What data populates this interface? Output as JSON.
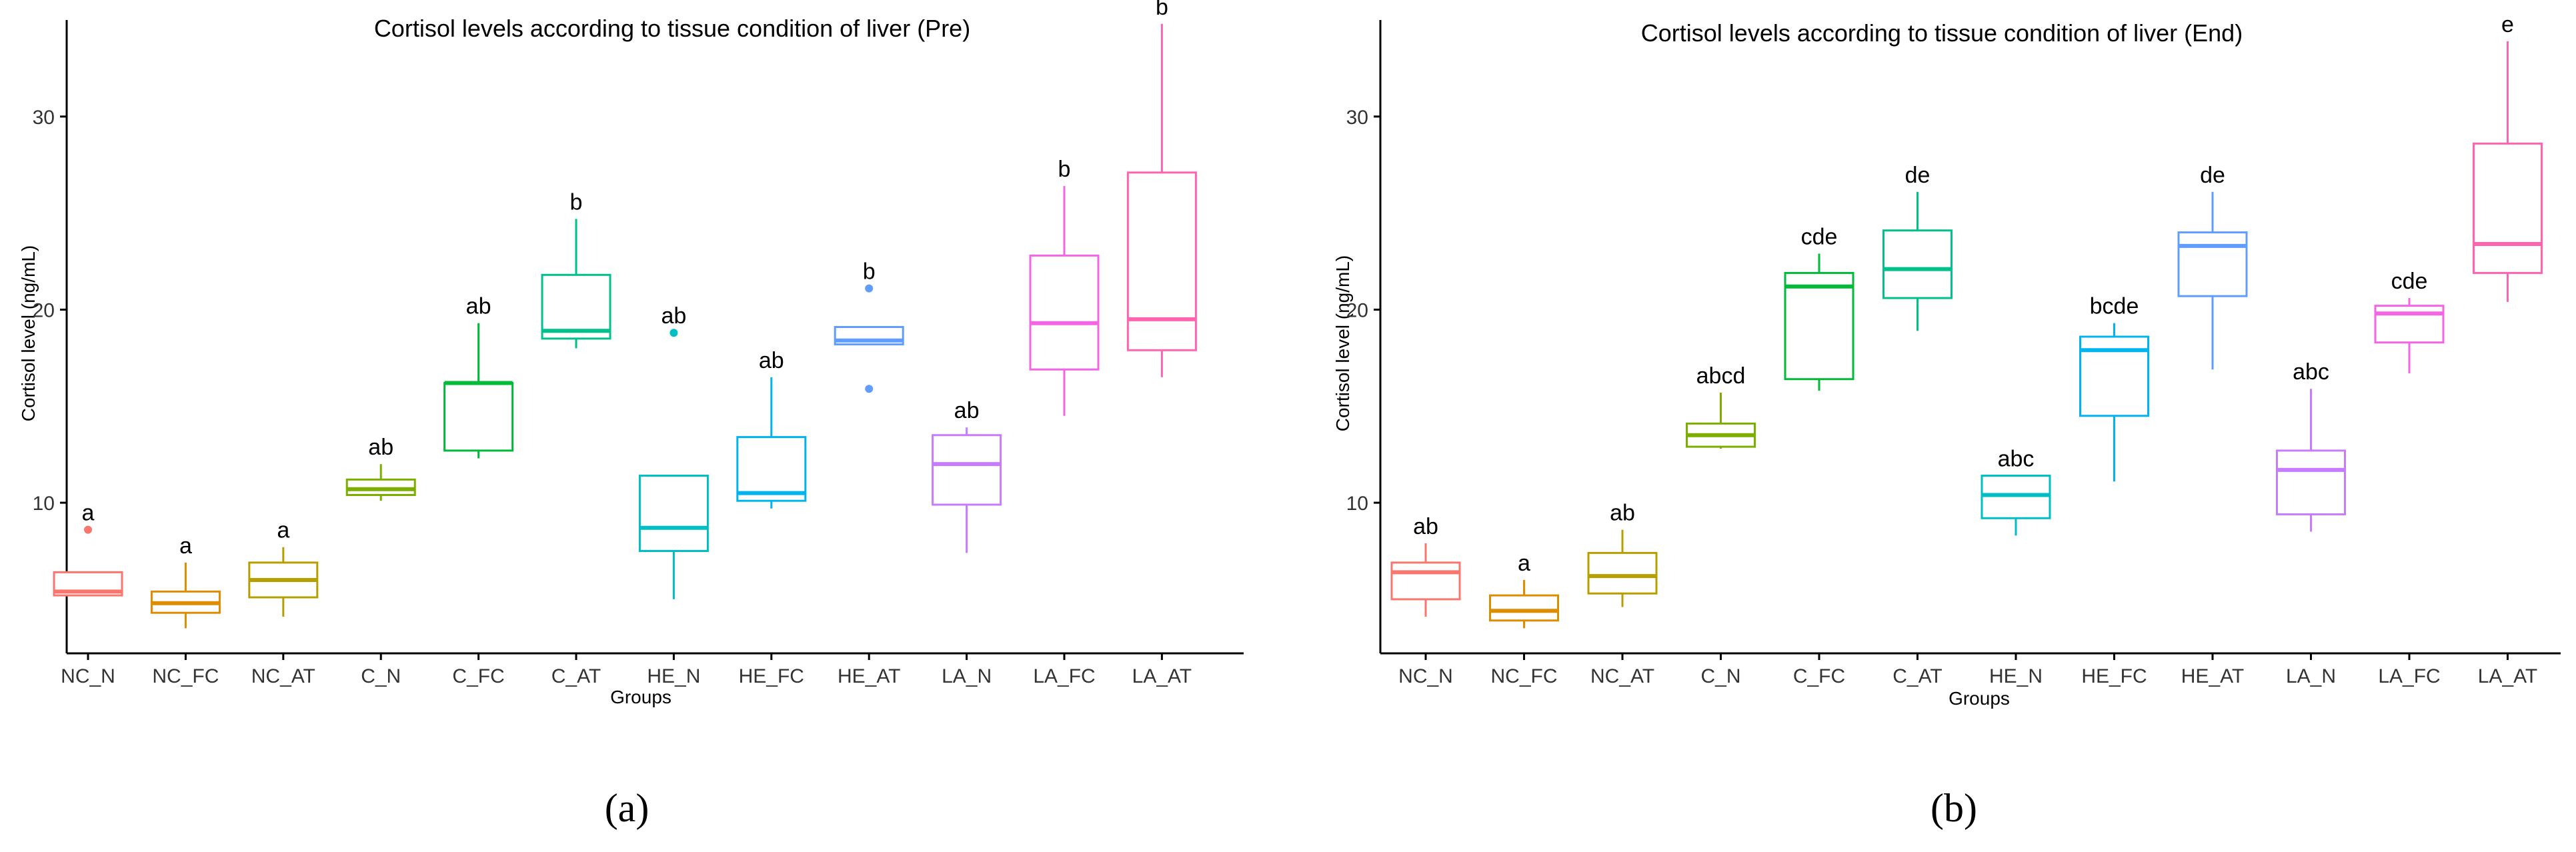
{
  "chart_data": [
    {
      "type": "box",
      "panel_label": "(a)",
      "title": "Cortisol levels according to tissue condition of liver (Pre)",
      "xlabel": "Groups",
      "ylabel": "Cortisol level (ng/mL)",
      "ylim": [
        2.2,
        35
      ],
      "yticks": [
        10,
        20,
        30
      ],
      "grid": false,
      "legend": "none",
      "categories": [
        "NC_N",
        "NC_FC",
        "NC_AT",
        "C_N",
        "C_FC",
        "C_AT",
        "HE_N",
        "HE_FC",
        "HE_AT",
        "LA_N",
        "LA_FC",
        "LA_AT"
      ],
      "boxes": [
        {
          "name": "NC_N",
          "color": "#F8766D",
          "whisker_low": 5.2,
          "q1": 5.2,
          "median": 5.4,
          "q3": 6.4,
          "whisker_high": 6.4,
          "outliers": [
            8.6
          ],
          "letter": "a"
        },
        {
          "name": "NC_FC",
          "color": "#DE8C00",
          "whisker_low": 3.5,
          "q1": 4.3,
          "median": 4.8,
          "q3": 5.4,
          "whisker_high": 6.9,
          "outliers": [],
          "letter": "a"
        },
        {
          "name": "NC_AT",
          "color": "#B79F00",
          "whisker_low": 4.1,
          "q1": 5.1,
          "median": 6.0,
          "q3": 6.9,
          "whisker_high": 7.7,
          "outliers": [],
          "letter": "a"
        },
        {
          "name": "C_N",
          "color": "#7CAE00",
          "whisker_low": 10.1,
          "q1": 10.4,
          "median": 10.7,
          "q3": 11.2,
          "whisker_high": 12.0,
          "outliers": [],
          "letter": "ab"
        },
        {
          "name": "C_FC",
          "color": "#00BA38",
          "whisker_low": 12.3,
          "q1": 12.7,
          "median": 16.2,
          "q3": 16.2,
          "whisker_high": 19.3,
          "outliers": [],
          "letter": "ab"
        },
        {
          "name": "C_AT",
          "color": "#00C08B",
          "whisker_low": 18.0,
          "q1": 18.5,
          "median": 18.9,
          "q3": 21.8,
          "whisker_high": 24.7,
          "outliers": [],
          "letter": "b"
        },
        {
          "name": "HE_N",
          "color": "#00BFC4",
          "whisker_low": 5.0,
          "q1": 7.5,
          "median": 8.7,
          "q3": 11.4,
          "whisker_high": 11.4,
          "outliers": [
            18.8
          ],
          "letter": "ab"
        },
        {
          "name": "HE_FC",
          "color": "#00B4F0",
          "whisker_low": 9.7,
          "q1": 10.1,
          "median": 10.5,
          "q3": 13.4,
          "whisker_high": 16.5,
          "outliers": [],
          "letter": "ab"
        },
        {
          "name": "HE_AT",
          "color": "#619CFF",
          "whisker_low": 18.2,
          "q1": 18.2,
          "median": 18.4,
          "q3": 19.1,
          "whisker_high": 19.1,
          "outliers": [
            21.1,
            15.9
          ],
          "letter": "b"
        },
        {
          "name": "LA_N",
          "color": "#C77CFF",
          "whisker_low": 7.4,
          "q1": 9.9,
          "median": 12.0,
          "q3": 13.5,
          "whisker_high": 13.9,
          "outliers": [],
          "letter": "ab"
        },
        {
          "name": "LA_FC",
          "color": "#F564E3",
          "whisker_low": 14.5,
          "q1": 16.9,
          "median": 19.3,
          "q3": 22.8,
          "whisker_high": 26.4,
          "outliers": [],
          "letter": "b"
        },
        {
          "name": "LA_AT",
          "color": "#FF64B0",
          "whisker_low": 16.5,
          "q1": 17.9,
          "median": 19.5,
          "q3": 27.1,
          "whisker_high": 34.8,
          "outliers": [],
          "letter": "b"
        }
      ]
    },
    {
      "type": "box",
      "panel_label": "(b)",
      "title": "Cortisol levels according to tissue condition of liver (End)",
      "xlabel": "Groups",
      "ylabel": "Cortisol level (ng/mL)",
      "ylim": [
        2.2,
        35
      ],
      "yticks": [
        10,
        20,
        30
      ],
      "grid": false,
      "legend": "none",
      "categories": [
        "NC_N",
        "NC_FC",
        "NC_AT",
        "C_N",
        "C_FC",
        "C_AT",
        "HE_N",
        "HE_FC",
        "HE_AT",
        "LA_N",
        "LA_FC",
        "LA_AT"
      ],
      "boxes": [
        {
          "name": "NC_N",
          "color": "#F8766D",
          "whisker_low": 4.1,
          "q1": 5.0,
          "median": 6.4,
          "q3": 6.9,
          "whisker_high": 7.9,
          "outliers": [],
          "letter": "ab"
        },
        {
          "name": "NC_FC",
          "color": "#DE8C00",
          "whisker_low": 3.5,
          "q1": 3.9,
          "median": 4.4,
          "q3": 5.2,
          "whisker_high": 6.0,
          "outliers": [],
          "letter": "a"
        },
        {
          "name": "NC_AT",
          "color": "#B79F00",
          "whisker_low": 4.6,
          "q1": 5.3,
          "median": 6.2,
          "q3": 7.4,
          "whisker_high": 8.6,
          "outliers": [],
          "letter": "ab"
        },
        {
          "name": "C_N",
          "color": "#7CAE00",
          "whisker_low": 12.8,
          "q1": 12.9,
          "median": 13.5,
          "q3": 14.1,
          "whisker_high": 15.7,
          "outliers": [],
          "letter": "abcd"
        },
        {
          "name": "C_FC",
          "color": "#00BA38",
          "whisker_low": 15.8,
          "q1": 16.4,
          "median": 21.2,
          "q3": 21.9,
          "whisker_high": 22.9,
          "outliers": [],
          "letter": "cde"
        },
        {
          "name": "C_AT",
          "color": "#00C08B",
          "whisker_low": 18.9,
          "q1": 20.6,
          "median": 22.1,
          "q3": 24.1,
          "whisker_high": 26.1,
          "outliers": [],
          "letter": "de"
        },
        {
          "name": "HE_N",
          "color": "#00BFC4",
          "whisker_low": 8.3,
          "q1": 9.2,
          "median": 10.4,
          "q3": 11.4,
          "whisker_high": 11.4,
          "outliers": [],
          "letter": "abc"
        },
        {
          "name": "HE_FC",
          "color": "#00B4F0",
          "whisker_low": 11.1,
          "q1": 14.5,
          "median": 17.9,
          "q3": 18.6,
          "whisker_high": 19.3,
          "outliers": [],
          "letter": "bcde"
        },
        {
          "name": "HE_AT",
          "color": "#619CFF",
          "whisker_low": 16.9,
          "q1": 20.7,
          "median": 23.3,
          "q3": 24.0,
          "whisker_high": 26.1,
          "outliers": [],
          "letter": "de"
        },
        {
          "name": "LA_N",
          "color": "#C77CFF",
          "whisker_low": 8.5,
          "q1": 9.4,
          "median": 11.7,
          "q3": 12.7,
          "whisker_high": 15.9,
          "outliers": [],
          "letter": "abc"
        },
        {
          "name": "LA_FC",
          "color": "#F564E3",
          "whisker_low": 16.7,
          "q1": 18.3,
          "median": 19.8,
          "q3": 20.2,
          "whisker_high": 20.6,
          "outliers": [],
          "letter": "cde"
        },
        {
          "name": "LA_AT",
          "color": "#FF64B0",
          "whisker_low": 20.4,
          "q1": 21.9,
          "median": 23.4,
          "q3": 28.6,
          "whisker_high": 33.9,
          "outliers": [],
          "letter": "e"
        }
      ]
    }
  ]
}
